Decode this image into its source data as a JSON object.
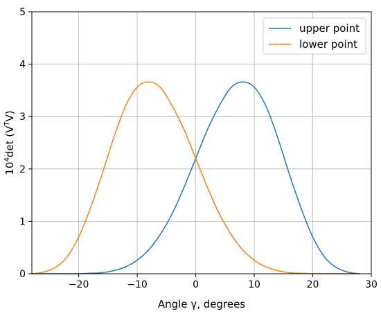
{
  "chart_data": {
    "type": "line",
    "title": "",
    "xlabel": "Angle γ, degrees",
    "ylabel_parts": {
      "base": "10",
      "exp": "4",
      "mid": "det (V",
      "sup": "T",
      "end": "V)"
    },
    "xlim": [
      -28,
      30
    ],
    "ylim": [
      0,
      5
    ],
    "xticks": [
      -20,
      -10,
      0,
      10,
      20,
      30
    ],
    "xtick_labels": [
      "−20",
      "−10",
      "0",
      "10",
      "20",
      "30"
    ],
    "yticks": [
      0,
      1,
      2,
      3,
      4,
      5
    ],
    "ytick_labels": [
      "0",
      "1",
      "2",
      "3",
      "4",
      "5"
    ],
    "grid": true,
    "legend_position": "top-right",
    "series": [
      {
        "name": "upper point",
        "color": "#1f77b4",
        "x": [
          -28,
          -26,
          -24,
          -22,
          -20,
          -18,
          -16,
          -14,
          -12,
          -10,
          -8,
          -6,
          -4,
          -2,
          0,
          2,
          4,
          6,
          8,
          10,
          12,
          14,
          16,
          18,
          20,
          22,
          24,
          26,
          28
        ],
        "y": [
          0.0,
          0.0,
          0.0,
          0.0,
          0.0,
          0.01,
          0.02,
          0.06,
          0.13,
          0.26,
          0.46,
          0.76,
          1.15,
          1.65,
          2.2,
          2.75,
          3.2,
          3.55,
          3.66,
          3.56,
          3.2,
          2.6,
          1.9,
          1.25,
          0.7,
          0.32,
          0.12,
          0.03,
          0.0
        ]
      },
      {
        "name": "lower point",
        "color": "#ff7f0e",
        "x": [
          -28,
          -26,
          -24,
          -22,
          -20,
          -18,
          -16,
          -14,
          -12,
          -10,
          -8,
          -6,
          -4,
          -2,
          0,
          2,
          4,
          6,
          8,
          10,
          12,
          14,
          16,
          18,
          20,
          22,
          24,
          26,
          28
        ],
        "y": [
          0.0,
          0.03,
          0.12,
          0.32,
          0.7,
          1.25,
          1.9,
          2.6,
          3.2,
          3.56,
          3.66,
          3.55,
          3.2,
          2.75,
          2.2,
          1.65,
          1.15,
          0.76,
          0.46,
          0.26,
          0.13,
          0.06,
          0.02,
          0.01,
          0.0,
          0.0,
          0.0,
          0.0,
          0.0
        ]
      }
    ]
  }
}
